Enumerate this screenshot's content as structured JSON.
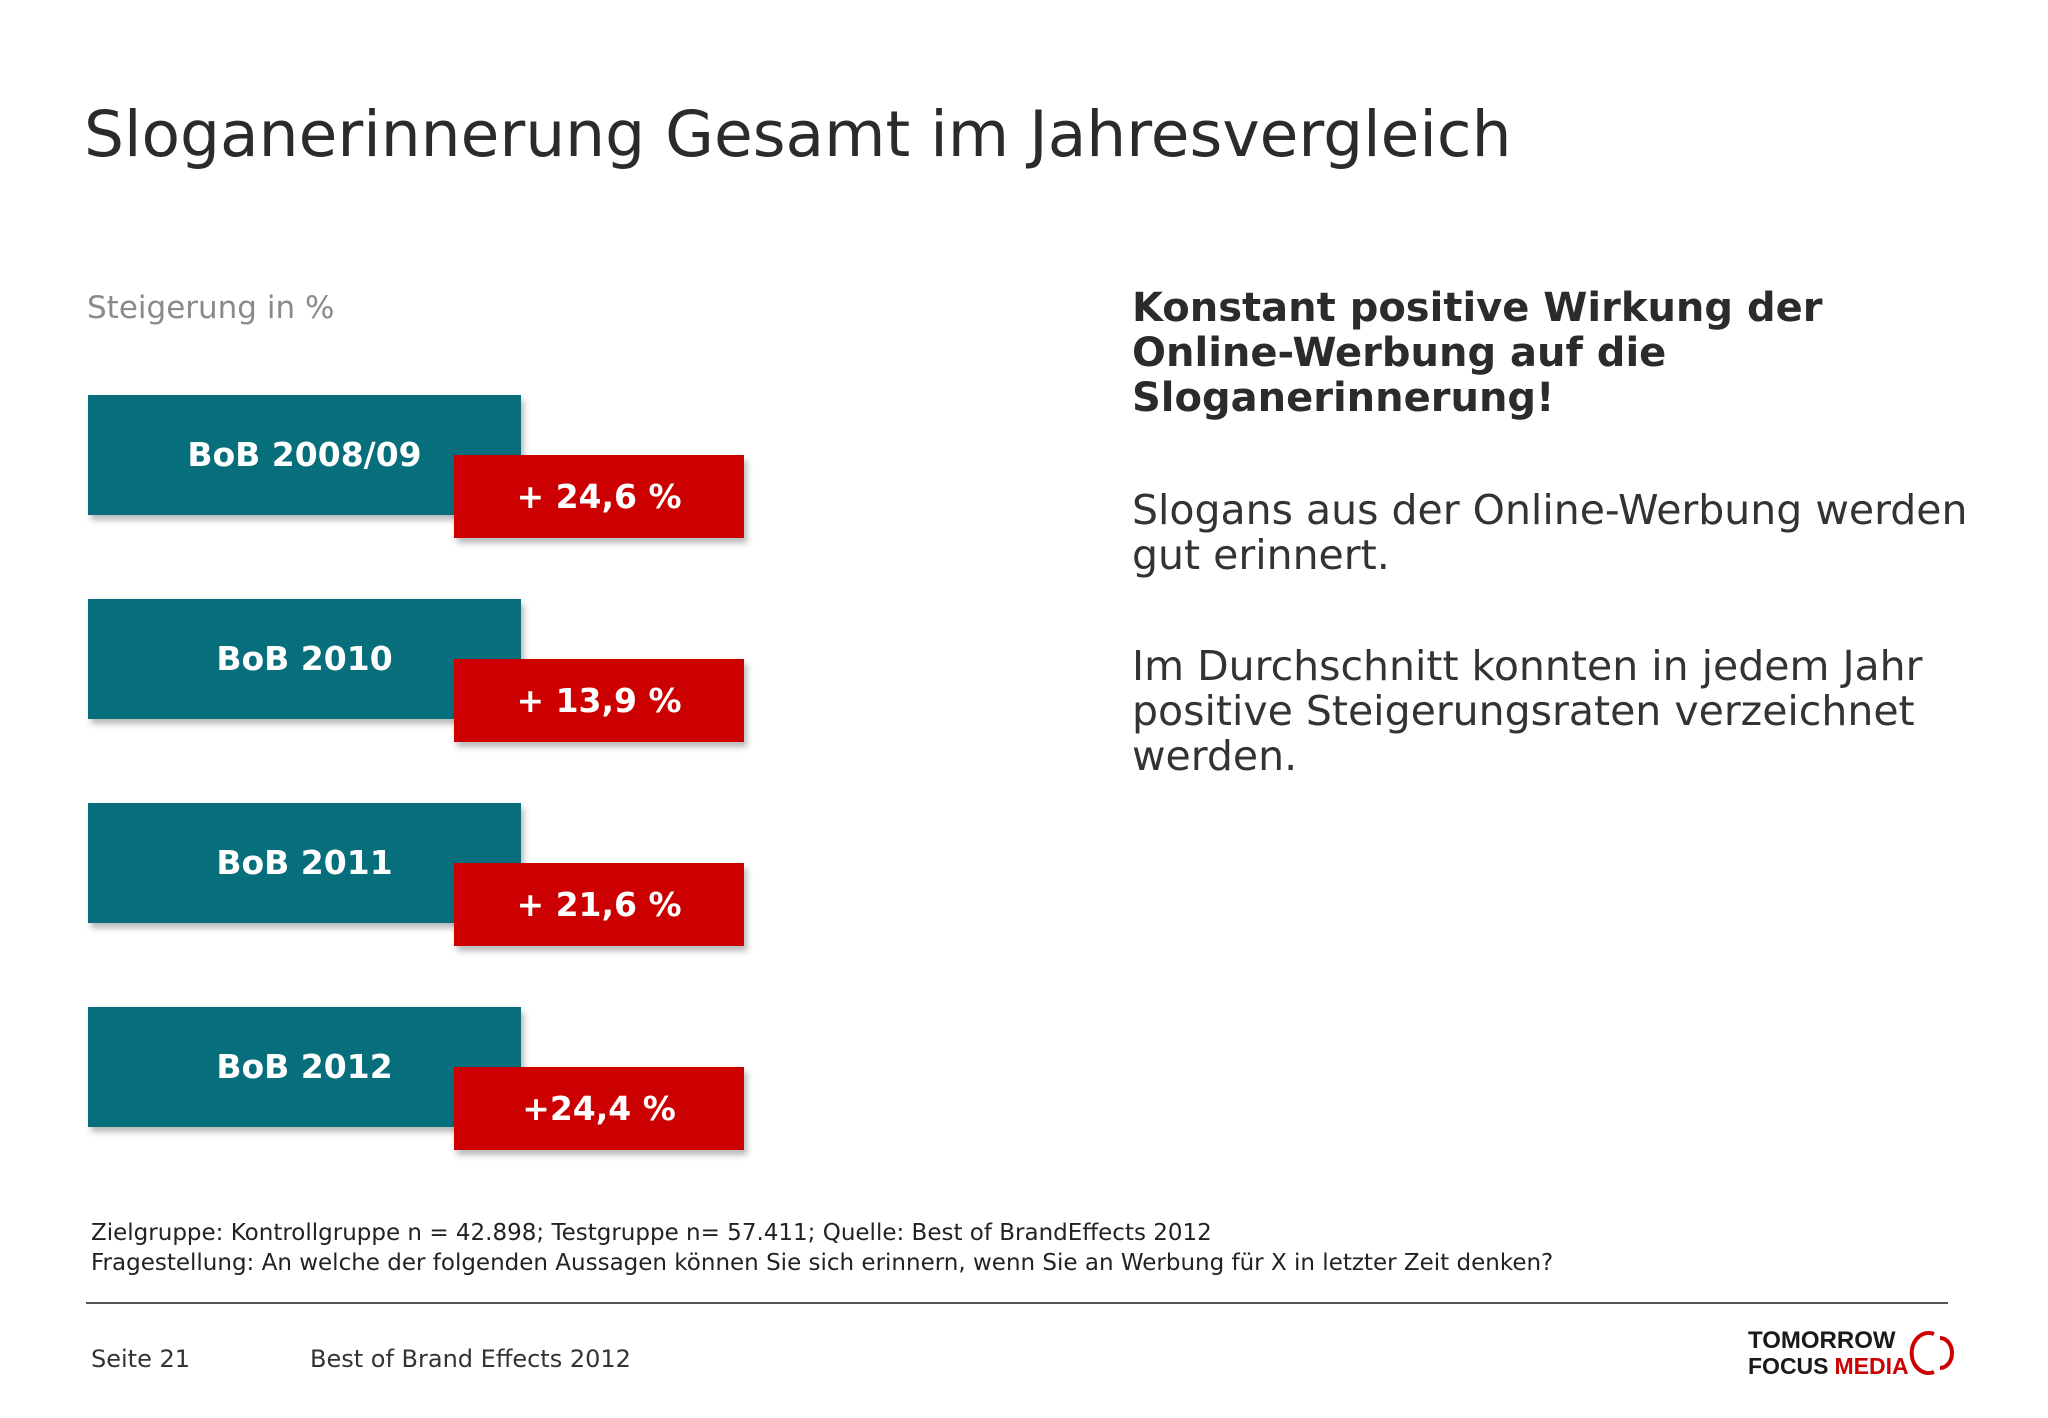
{
  "slide": {
    "title": "Sloganerinnerung Gesamt im Jahresvergleich"
  },
  "chart": {
    "subtitle": "Steigerung in %",
    "items": [
      {
        "label": "BoB 2008/09",
        "value_text": "+ 24,6 %"
      },
      {
        "label": "BoB 2010",
        "value_text": "+ 13,9 %"
      },
      {
        "label": "BoB 2011",
        "value_text": "+ 21,6 %"
      },
      {
        "label": "BoB 2012",
        "value_text": "+24,4 %"
      }
    ]
  },
  "text_panel": {
    "headline": "Konstant positive Wirkung der Online-Werbung auf die Sloganerinnerung!",
    "paragraphs": [
      "Slogans aus der Online-Werbung werden gut erinnert.",
      "Im Durchschnitt konnten in jedem Jahr positive Steigerungsraten verzeichnet werden."
    ]
  },
  "footnotes": [
    "Zielgruppe: Kontrollgruppe n = 42.898; Testgruppe n= 57.411; Quelle: Best of BrandEffects 2012",
    "Fragestellung: An welche der folgenden Aussagen können Sie sich erinnern, wenn Sie an Werbung für X in letzter Zeit denken?"
  ],
  "footer": {
    "page_number": "Seite 21",
    "title": "Best of Brand Effects 2012"
  },
  "logo": {
    "line1": "TOMORROW",
    "line2_a": "FOCUS",
    "line2_b": "MEDIA"
  },
  "colors": {
    "teal": "#076e7b",
    "red": "#cc0000",
    "text": "#333333",
    "subtle": "#8a8a8a"
  }
}
